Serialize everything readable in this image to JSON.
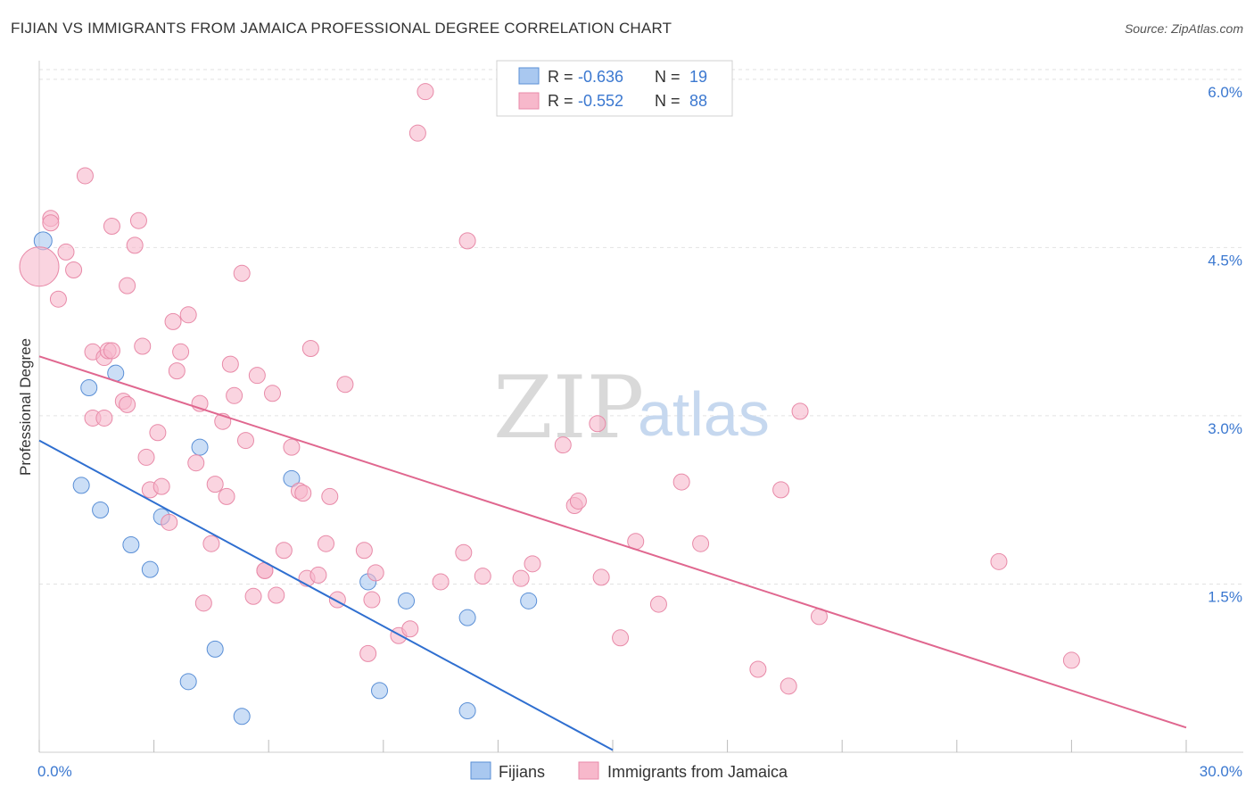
{
  "header": {
    "title": "FIJIAN VS IMMIGRANTS FROM JAMAICA PROFESSIONAL DEGREE CORRELATION CHART",
    "source": "Source: ZipAtlas.com"
  },
  "legend": {
    "rows": [
      {
        "r_label": "R = ",
        "r_value": "-0.636",
        "n_label": "N = ",
        "n_value": "19",
        "color": "#a9c8f0"
      },
      {
        "r_label": "R = ",
        "r_value": "-0.552",
        "n_label": "N = ",
        "n_value": "88",
        "color": "#f7b8cb"
      }
    ]
  },
  "watermark": {
    "zip": "ZIP",
    "atlas": "atlas"
  },
  "chart_data": {
    "type": "scatter",
    "title": "FIJIAN VS IMMIGRANTS FROM JAMAICA PROFESSIONAL DEGREE CORRELATION CHART",
    "xlabel": "",
    "ylabel": "Professional Degree",
    "xlim": [
      0,
      30
    ],
    "ylim": [
      0,
      6.15
    ],
    "x_tick_labels": [
      {
        "value": 0,
        "label": "0.0%"
      },
      {
        "value": 30,
        "label": "30.0%"
      }
    ],
    "y_tick_labels": [
      {
        "value": 1.5,
        "label": "1.5%"
      },
      {
        "value": 3.0,
        "label": "3.0%"
      },
      {
        "value": 4.5,
        "label": "4.5%"
      },
      {
        "value": 6.0,
        "label": "6.0%"
      }
    ],
    "grid": true,
    "series": [
      {
        "name": "Fijians",
        "color": "#a9c8f0",
        "edge": "#5a8fd6",
        "line_color": "#2f6fd0",
        "trend": {
          "x0": 0,
          "y0": 2.78,
          "x1": 15.0,
          "y1": 0.02
        },
        "points": [
          [
            0.1,
            4.56
          ],
          [
            1.3,
            3.25
          ],
          [
            2.0,
            3.38
          ],
          [
            1.1,
            2.38
          ],
          [
            1.6,
            2.16
          ],
          [
            2.4,
            1.85
          ],
          [
            2.9,
            1.63
          ],
          [
            3.2,
            2.1
          ],
          [
            4.2,
            2.72
          ],
          [
            4.6,
            0.92
          ],
          [
            3.9,
            0.63
          ],
          [
            5.3,
            0.32
          ],
          [
            6.6,
            2.44
          ],
          [
            8.6,
            1.52
          ],
          [
            8.9,
            0.55
          ],
          [
            9.6,
            1.35
          ],
          [
            11.2,
            0.37
          ],
          [
            11.2,
            1.2
          ],
          [
            12.8,
            1.35
          ]
        ]
      },
      {
        "name": "Immigrants from Jamaica",
        "color": "#f7b8cb",
        "edge": "#e88aa8",
        "line_color": "#e0678f",
        "trend": {
          "x0": 0,
          "y0": 3.53,
          "x1": 30,
          "y1": 0.22
        },
        "points": [
          [
            0.0,
            4.33
          ],
          [
            0.3,
            4.76
          ],
          [
            0.3,
            4.72
          ],
          [
            0.5,
            4.04
          ],
          [
            0.7,
            4.46
          ],
          [
            0.9,
            4.3
          ],
          [
            1.2,
            5.14
          ],
          [
            1.4,
            3.57
          ],
          [
            1.7,
            3.52
          ],
          [
            1.8,
            3.58
          ],
          [
            1.9,
            3.58
          ],
          [
            1.4,
            2.98
          ],
          [
            1.7,
            2.98
          ],
          [
            1.9,
            4.69
          ],
          [
            2.2,
            3.13
          ],
          [
            2.3,
            3.1
          ],
          [
            2.3,
            4.16
          ],
          [
            2.5,
            4.52
          ],
          [
            2.6,
            4.74
          ],
          [
            2.7,
            3.62
          ],
          [
            2.8,
            2.63
          ],
          [
            2.9,
            2.34
          ],
          [
            3.1,
            2.85
          ],
          [
            3.2,
            2.37
          ],
          [
            3.4,
            2.05
          ],
          [
            3.5,
            3.84
          ],
          [
            3.6,
            3.4
          ],
          [
            3.7,
            3.57
          ],
          [
            3.9,
            3.9
          ],
          [
            4.1,
            2.58
          ],
          [
            4.2,
            3.11
          ],
          [
            4.3,
            1.33
          ],
          [
            4.5,
            1.86
          ],
          [
            4.6,
            2.39
          ],
          [
            4.8,
            2.95
          ],
          [
            4.9,
            2.28
          ],
          [
            5.0,
            3.46
          ],
          [
            5.1,
            3.18
          ],
          [
            5.3,
            4.27
          ],
          [
            5.4,
            2.78
          ],
          [
            5.6,
            1.39
          ],
          [
            5.7,
            3.36
          ],
          [
            5.9,
            1.62
          ],
          [
            5.9,
            1.62
          ],
          [
            6.1,
            3.2
          ],
          [
            6.2,
            1.4
          ],
          [
            6.4,
            1.8
          ],
          [
            6.6,
            2.72
          ],
          [
            6.8,
            2.33
          ],
          [
            6.9,
            2.31
          ],
          [
            7.0,
            1.55
          ],
          [
            7.1,
            3.6
          ],
          [
            7.3,
            1.58
          ],
          [
            7.5,
            1.86
          ],
          [
            7.6,
            2.28
          ],
          [
            7.8,
            1.36
          ],
          [
            8.0,
            3.28
          ],
          [
            8.5,
            1.8
          ],
          [
            8.6,
            0.88
          ],
          [
            8.7,
            1.36
          ],
          [
            8.8,
            1.6
          ],
          [
            9.4,
            1.04
          ],
          [
            9.7,
            1.1
          ],
          [
            9.9,
            5.52
          ],
          [
            10.1,
            5.89
          ],
          [
            10.5,
            1.52
          ],
          [
            11.1,
            1.78
          ],
          [
            11.2,
            4.56
          ],
          [
            11.6,
            1.57
          ],
          [
            12.6,
            1.55
          ],
          [
            12.9,
            1.68
          ],
          [
            13.7,
            2.74
          ],
          [
            14.0,
            2.2
          ],
          [
            14.1,
            2.24
          ],
          [
            14.6,
            2.93
          ],
          [
            14.7,
            1.56
          ],
          [
            15.2,
            1.02
          ],
          [
            15.6,
            1.88
          ],
          [
            16.2,
            1.32
          ],
          [
            16.8,
            2.41
          ],
          [
            17.3,
            1.86
          ],
          [
            18.8,
            0.74
          ],
          [
            19.4,
            2.34
          ],
          [
            19.6,
            0.59
          ],
          [
            19.9,
            3.04
          ],
          [
            20.4,
            1.21
          ],
          [
            25.1,
            1.7
          ],
          [
            27.0,
            0.82
          ]
        ]
      }
    ]
  }
}
